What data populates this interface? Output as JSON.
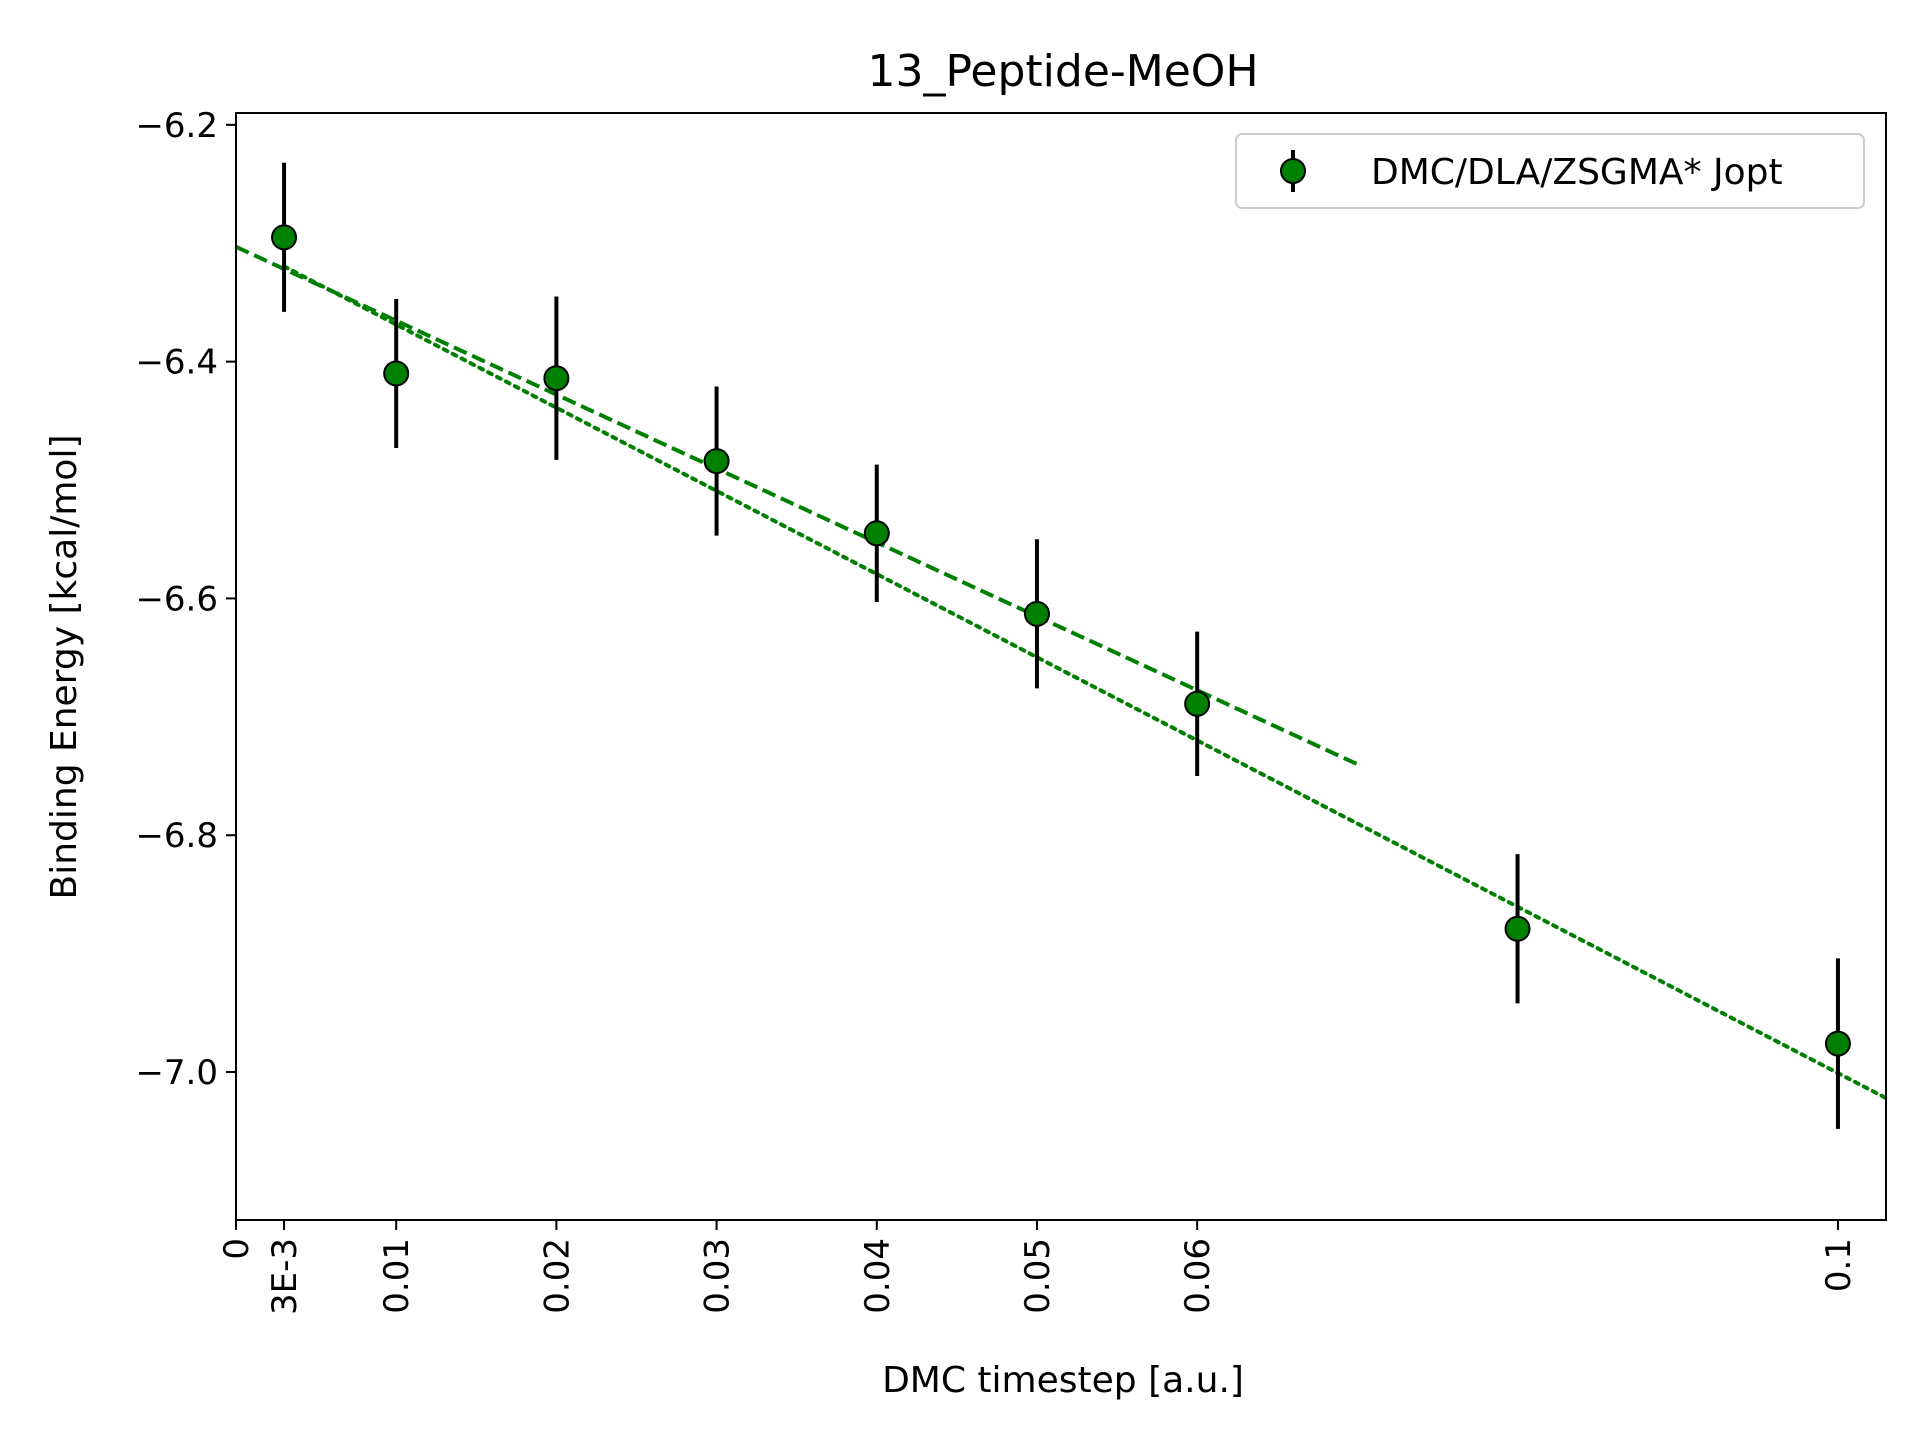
{
  "chart_data": {
    "type": "scatter",
    "title": "13_Peptide-MeOH",
    "xlabel": "DMC timestep [a.u.]",
    "ylabel": "Binding Energy [kcal/mol]",
    "xlim": [
      0,
      0.103
    ],
    "ylim": [
      -7.125,
      -6.19
    ],
    "x_ticks": [
      {
        "value": 0,
        "label": "0"
      },
      {
        "value": 0.003,
        "label": "3E-3"
      },
      {
        "value": 0.01,
        "label": "0.01"
      },
      {
        "value": 0.02,
        "label": "0.02"
      },
      {
        "value": 0.03,
        "label": "0.03"
      },
      {
        "value": 0.04,
        "label": "0.04"
      },
      {
        "value": 0.05,
        "label": "0.05"
      },
      {
        "value": 0.06,
        "label": "0.06"
      },
      {
        "value": 0.1,
        "label": "0.1"
      }
    ],
    "y_ticks": [
      {
        "value": -6.2,
        "label": "−6.2"
      },
      {
        "value": -6.4,
        "label": "−6.4"
      },
      {
        "value": -6.6,
        "label": "−6.6"
      },
      {
        "value": -6.8,
        "label": "−6.8"
      },
      {
        "value": -7.0,
        "label": "−7.0"
      }
    ],
    "grid": false,
    "legend_position": "top-right",
    "series": [
      {
        "name": "DMC/DLA/ZSGMA* Jopt",
        "color": "#008000",
        "marker_edge": "#000000",
        "errorbar_color": "#000000",
        "points": [
          {
            "x": 0.003,
            "y": -6.295,
            "err": 0.063
          },
          {
            "x": 0.01,
            "y": -6.41,
            "err": 0.063
          },
          {
            "x": 0.02,
            "y": -6.414,
            "err": 0.069
          },
          {
            "x": 0.03,
            "y": -6.484,
            "err": 0.063
          },
          {
            "x": 0.04,
            "y": -6.545,
            "err": 0.058
          },
          {
            "x": 0.05,
            "y": -6.613,
            "err": 0.063
          },
          {
            "x": 0.06,
            "y": -6.689,
            "err": 0.061
          },
          {
            "x": 0.08,
            "y": -6.879,
            "err": 0.063
          },
          {
            "x": 0.1,
            "y": -6.976,
            "err": 0.072
          }
        ]
      }
    ],
    "fit_lines": [
      {
        "style": "dashed",
        "color": "#008000",
        "x": [
          0,
          0.07
        ],
        "y": [
          -6.303,
          -6.74
        ]
      },
      {
        "style": "dotted",
        "color": "#008000",
        "x": [
          0.003,
          0.103
        ],
        "y": [
          -6.3195,
          -7.022
        ]
      }
    ]
  }
}
